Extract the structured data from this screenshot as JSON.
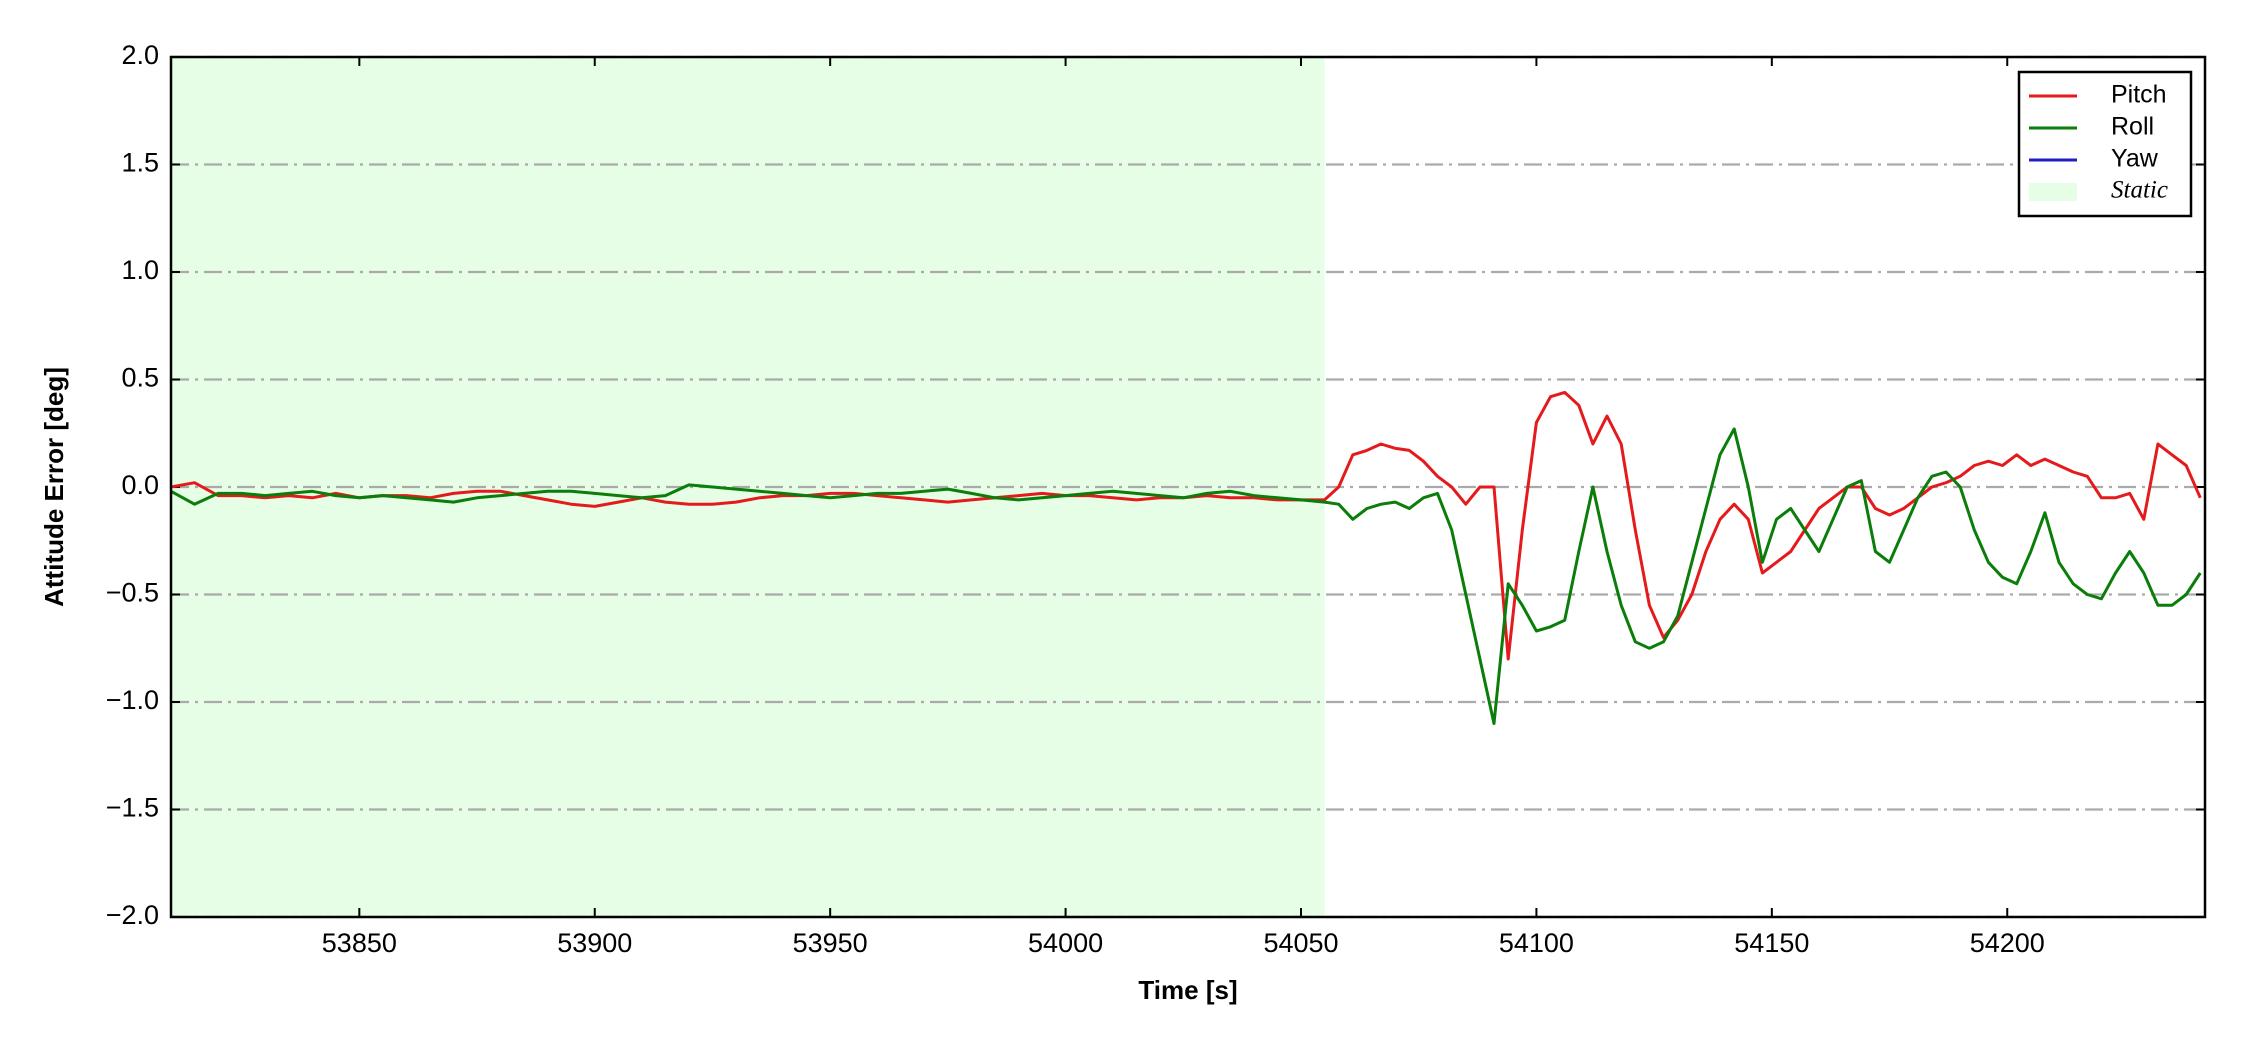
{
  "chart_data": {
    "type": "line",
    "xlabel": "Time [s]",
    "ylabel": "Attitude Error [deg]",
    "x": [
      53810,
      53815,
      53820,
      53825,
      53830,
      53835,
      53840,
      53845,
      53850,
      53855,
      53860,
      53865,
      53870,
      53875,
      53880,
      53885,
      53890,
      53895,
      53900,
      53905,
      53910,
      53915,
      53920,
      53925,
      53930,
      53935,
      53940,
      53945,
      53950,
      53955,
      53960,
      53965,
      53970,
      53975,
      53980,
      53985,
      53990,
      53995,
      54000,
      54005,
      54010,
      54015,
      54020,
      54025,
      54030,
      54035,
      54040,
      54045,
      54050,
      54055,
      54058,
      54061,
      54064,
      54067,
      54070,
      54073,
      54076,
      54079,
      54082,
      54085,
      54088,
      54091,
      54094,
      54097,
      54100,
      54103,
      54106,
      54109,
      54112,
      54115,
      54118,
      54121,
      54124,
      54127,
      54130,
      54133,
      54136,
      54139,
      54142,
      54145,
      54148,
      54151,
      54154,
      54157,
      54160,
      54163,
      54166,
      54169,
      54172,
      54175,
      54178,
      54181,
      54184,
      54187,
      54190,
      54193,
      54196,
      54199,
      54202,
      54205,
      54208,
      54211,
      54214,
      54217,
      54220,
      54223,
      54226,
      54229,
      54232,
      54235,
      54238,
      54241
    ],
    "series": [
      {
        "name": "Pitch",
        "color": "#e41a1c",
        "values": [
          0.0,
          0.02,
          -0.04,
          -0.04,
          -0.05,
          -0.04,
          -0.05,
          -0.03,
          -0.05,
          -0.04,
          -0.04,
          -0.05,
          -0.03,
          -0.02,
          -0.02,
          -0.04,
          -0.06,
          -0.08,
          -0.09,
          -0.07,
          -0.05,
          -0.07,
          -0.08,
          -0.08,
          -0.07,
          -0.05,
          -0.04,
          -0.04,
          -0.03,
          -0.03,
          -0.04,
          -0.05,
          -0.06,
          -0.07,
          -0.06,
          -0.05,
          -0.04,
          -0.03,
          -0.04,
          -0.04,
          -0.05,
          -0.06,
          -0.05,
          -0.05,
          -0.04,
          -0.05,
          -0.05,
          -0.06,
          -0.06,
          -0.06,
          0.0,
          0.15,
          0.17,
          0.2,
          0.18,
          0.17,
          0.12,
          0.05,
          0.0,
          -0.08,
          0.0,
          0.0,
          -0.8,
          -0.2,
          0.3,
          0.42,
          0.44,
          0.38,
          0.2,
          0.33,
          0.2,
          -0.2,
          -0.55,
          -0.7,
          -0.62,
          -0.5,
          -0.3,
          -0.15,
          -0.08,
          -0.15,
          -0.4,
          -0.35,
          -0.3,
          -0.2,
          -0.1,
          -0.05,
          0.0,
          0.0,
          -0.1,
          -0.13,
          -0.1,
          -0.05,
          0.0,
          0.02,
          0.05,
          0.1,
          0.12,
          0.1,
          0.15,
          0.1,
          0.13,
          0.1,
          0.07,
          0.05,
          -0.05,
          -0.05,
          -0.03,
          -0.15,
          0.2,
          0.15,
          0.1,
          -0.05
        ]
      },
      {
        "name": "Roll",
        "color": "#0a7d0a",
        "values": [
          -0.02,
          -0.08,
          -0.03,
          -0.03,
          -0.04,
          -0.03,
          -0.02,
          -0.04,
          -0.05,
          -0.04,
          -0.05,
          -0.06,
          -0.07,
          -0.05,
          -0.04,
          -0.03,
          -0.02,
          -0.02,
          -0.03,
          -0.04,
          -0.05,
          -0.04,
          0.01,
          0.0,
          -0.01,
          -0.02,
          -0.03,
          -0.04,
          -0.05,
          -0.04,
          -0.03,
          -0.03,
          -0.02,
          -0.01,
          -0.03,
          -0.05,
          -0.06,
          -0.05,
          -0.04,
          -0.03,
          -0.02,
          -0.03,
          -0.04,
          -0.05,
          -0.03,
          -0.02,
          -0.04,
          -0.05,
          -0.06,
          -0.07,
          -0.08,
          -0.15,
          -0.1,
          -0.08,
          -0.07,
          -0.1,
          -0.05,
          -0.03,
          -0.2,
          -0.5,
          -0.8,
          -1.1,
          -0.45,
          -0.55,
          -0.67,
          -0.65,
          -0.62,
          -0.3,
          0.0,
          -0.3,
          -0.55,
          -0.72,
          -0.75,
          -0.72,
          -0.6,
          -0.35,
          -0.1,
          0.15,
          0.27,
          0.0,
          -0.35,
          -0.15,
          -0.1,
          -0.2,
          -0.3,
          -0.15,
          0.0,
          0.03,
          -0.3,
          -0.35,
          -0.2,
          -0.05,
          0.05,
          0.07,
          0.0,
          -0.2,
          -0.35,
          -0.42,
          -0.45,
          -0.3,
          -0.12,
          -0.35,
          -0.45,
          -0.5,
          -0.52,
          -0.4,
          -0.3,
          -0.4,
          -0.55,
          -0.55,
          -0.5,
          -0.4
        ]
      },
      {
        "name": "Yaw",
        "color": "#1f1fbf",
        "values": [
          null,
          null,
          null,
          null,
          null,
          null,
          null,
          null,
          null,
          null,
          null,
          null,
          null,
          null,
          null,
          null,
          null,
          null,
          null,
          null,
          null,
          null,
          null,
          null,
          null,
          null,
          null,
          null,
          null,
          null,
          null,
          null,
          null,
          null,
          null,
          null,
          null,
          null,
          null,
          null,
          null,
          null,
          null,
          null,
          null,
          null,
          null,
          null,
          null,
          null,
          null,
          null,
          null,
          null,
          null,
          null,
          null,
          null,
          null,
          null,
          null,
          null,
          null,
          null,
          null,
          null,
          null,
          null,
          null,
          null,
          null,
          null,
          null,
          null,
          null,
          null,
          null,
          null,
          null,
          null,
          null,
          null,
          null,
          null,
          null,
          null,
          null,
          null,
          null,
          null,
          null,
          null,
          null,
          null,
          null,
          null,
          null,
          null,
          null,
          null,
          null,
          null,
          null,
          null,
          null,
          null,
          null,
          null,
          null,
          null,
          null,
          null
        ]
      }
    ],
    "spans": [
      {
        "name": "Static",
        "start": 53810,
        "end": 54055,
        "color": "#e6fde6"
      }
    ],
    "xlim": [
      53810,
      54242
    ],
    "ylim": [
      -2.0,
      2.0
    ],
    "xticks": [
      53850,
      53900,
      53950,
      54000,
      54050,
      54100,
      54150,
      54200
    ],
    "yticks": [
      {
        "value": -2.0,
        "label": "−2.0"
      },
      {
        "value": -1.5,
        "label": "−1.5"
      },
      {
        "value": -1.0,
        "label": "−1.0"
      },
      {
        "value": -0.5,
        "label": "−0.5"
      },
      {
        "value": 0.0,
        "label": "0.0"
      },
      {
        "value": 0.5,
        "label": "0.5"
      },
      {
        "value": 1.0,
        "label": "1.0"
      },
      {
        "value": 1.5,
        "label": "1.5"
      },
      {
        "value": 2.0,
        "label": "2.0"
      }
    ],
    "grid": true,
    "legend": "upper right"
  }
}
